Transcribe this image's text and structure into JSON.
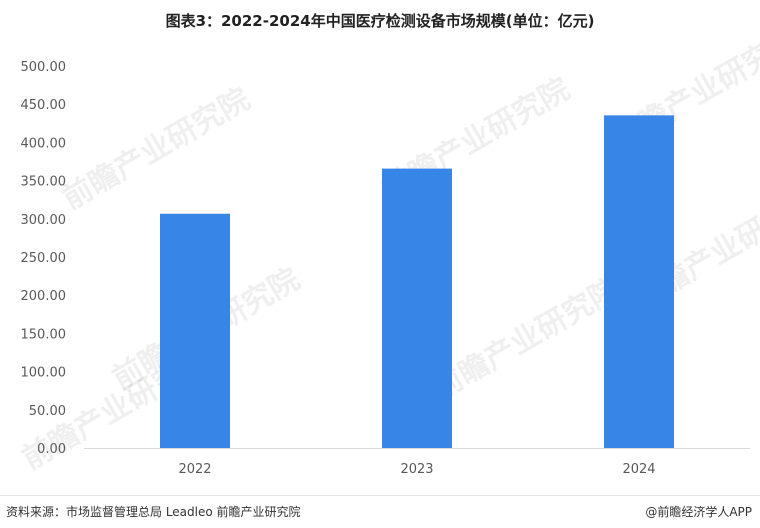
{
  "chart_data": {
    "type": "bar",
    "title": "图表3：2022-2024年中国医疗检测设备市场规模(单位：亿元)",
    "categories": [
      "2022",
      "2023",
      "2024"
    ],
    "values": [
      306.62,
      365.7,
      435.4
    ],
    "ylim": [
      0,
      500
    ],
    "yticks": [
      "0.00",
      "50.00",
      "100.00",
      "150.00",
      "200.00",
      "250.00",
      "300.00",
      "350.00",
      "400.00",
      "450.00",
      "500.00"
    ],
    "xlabel": "",
    "ylabel": "",
    "grid": false,
    "bar_color": "#3785E6"
  },
  "footer": {
    "source": "资料来源：市场监督管理总局 Leadleo 前瞻产业研究院",
    "brand": "@前瞻经济学人APP"
  },
  "watermark": {
    "text": "前瞻产业研究院"
  },
  "colors": {
    "bar": "#3785E6",
    "axis": "#bfbfbf",
    "text": "#595959"
  }
}
